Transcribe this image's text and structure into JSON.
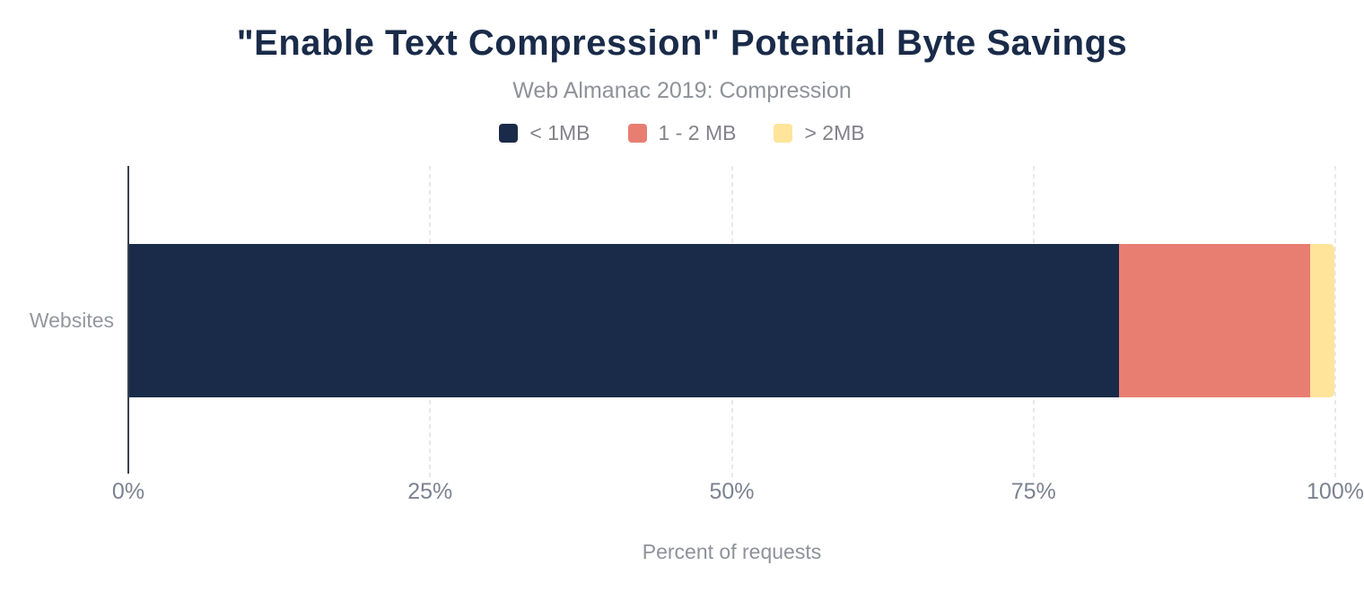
{
  "chart_data": {
    "type": "bar",
    "orientation": "horizontal",
    "stacked": true,
    "title": "\"Enable Text Compression\" Potential Byte Savings",
    "subtitle": "Web Almanac 2019: Compression",
    "xlabel": "Percent of requests",
    "ylabel": "Websites",
    "categories": [
      "Websites"
    ],
    "series": [
      {
        "name": "< 1MB",
        "color": "#1a2b49",
        "values": [
          82.1
        ]
      },
      {
        "name": "1 - 2 MB",
        "color": "#e87e72",
        "values": [
          15.9
        ]
      },
      {
        "name": "> 2MB",
        "color": "#ffe49a",
        "values": [
          2.0
        ]
      }
    ],
    "xlim": [
      0,
      100
    ],
    "x_ticks": [
      {
        "value": 0,
        "label": "0%"
      },
      {
        "value": 25,
        "label": "25%"
      },
      {
        "value": 50,
        "label": "50%"
      },
      {
        "value": 75,
        "label": "75%"
      },
      {
        "value": 100,
        "label": "100%"
      }
    ],
    "grid": "vertical-dashed",
    "legend_position": "top"
  },
  "colors": {
    "title_text": "#1a2b49",
    "muted_text": "#8e9299",
    "tick_text": "#7b8290",
    "legend_text": "#82828a",
    "axis_line": "#39404f",
    "gridline": "#e9e9e9"
  }
}
